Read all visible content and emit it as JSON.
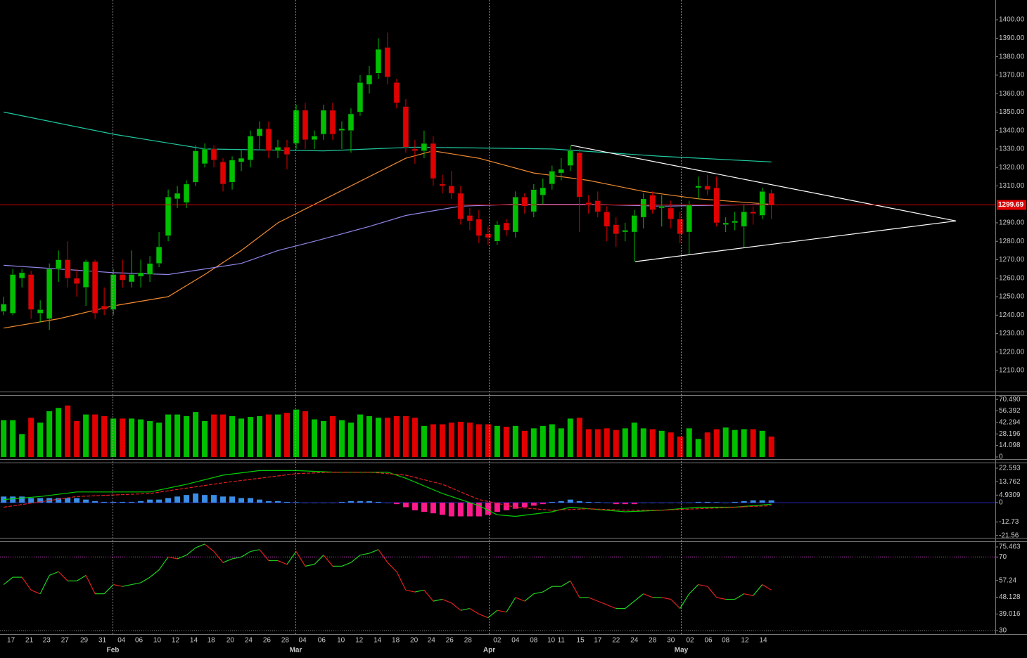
{
  "chart_data": [
    {
      "type": "candlestick",
      "up_color": "#00c000",
      "down_color": "#e00000",
      "xlim": [
        -0.4,
        108.5
      ],
      "ylim": [
        1198.6,
        1410.7
      ],
      "yticks": [
        1210,
        1220,
        1230,
        1240,
        1250,
        1260,
        1270,
        1280,
        1290,
        1310,
        1320,
        1330,
        1340,
        1350,
        1360,
        1370,
        1380,
        1390,
        1400
      ],
      "ytick_labels": [
        "1210.00",
        "1220.00",
        "1230.00",
        "1240.00",
        "1250.00",
        "1260.00",
        "1270.00",
        "1280.00",
        "1290.00",
        "1310.00",
        "1320.00",
        "1330.00",
        "1340.00",
        "1350.00",
        "1360.00",
        "1370.00",
        "1380.00",
        "1390.00",
        "1400.00"
      ],
      "last_price": 1299.69,
      "last_price_color": "#e00000",
      "open": [
        1242,
        1241,
        1260,
        1262,
        1241,
        1238,
        1265,
        1270,
        1260,
        1255,
        1269,
        1245,
        1243,
        1262,
        1258,
        1261,
        1262,
        1268,
        1283,
        1303,
        1301,
        1312,
        1322,
        1330,
        1323,
        1312,
        1323,
        1324,
        1337,
        1341,
        1329,
        1331,
        1333,
        1351,
        1335,
        1338,
        1351,
        1340,
        1340,
        1350,
        1365,
        1371,
        1385,
        1366,
        1353,
        1330,
        1329,
        1333,
        1311,
        1310,
        1306,
        1294,
        1292,
        1284,
        1280,
        1290,
        1285,
        1304,
        1296,
        1305,
        1311,
        1317,
        1321,
        1328,
        1301,
        1302,
        1296,
        1289,
        1285,
        1285,
        1293,
        1305,
        1298,
        1298,
        1292,
        1285,
        1309,
        1310,
        1309,
        1289,
        1290,
        1288,
        1296,
        1294,
        1306
      ],
      "high": [
        1250,
        1265,
        1265,
        1264,
        1248,
        1268,
        1275,
        1280,
        1265,
        1270,
        1270,
        1255,
        1265,
        1270,
        1275,
        1270,
        1272,
        1285,
        1308,
        1310,
        1313,
        1332,
        1333,
        1332,
        1325,
        1326,
        1330,
        1340,
        1345,
        1345,
        1335,
        1335,
        1354,
        1355,
        1340,
        1354,
        1355,
        1345,
        1352,
        1370,
        1375,
        1390,
        1393,
        1368,
        1357,
        1335,
        1340,
        1337,
        1316,
        1318,
        1310,
        1298,
        1297,
        1288,
        1291,
        1292,
        1307,
        1306,
        1311,
        1314,
        1321,
        1325,
        1332,
        1330,
        1305,
        1307,
        1299,
        1293,
        1290,
        1297,
        1306,
        1307,
        1305,
        1302,
        1296,
        1302,
        1315,
        1316,
        1315,
        1293,
        1296,
        1300,
        1299,
        1309,
        1308
      ],
      "low": [
        1240,
        1240,
        1255,
        1238,
        1236,
        1232,
        1258,
        1255,
        1250,
        1245,
        1238,
        1240,
        1240,
        1255,
        1255,
        1255,
        1258,
        1266,
        1280,
        1298,
        1298,
        1310,
        1320,
        1320,
        1307,
        1308,
        1318,
        1320,
        1330,
        1325,
        1325,
        1319,
        1330,
        1330,
        1330,
        1335,
        1335,
        1330,
        1328,
        1348,
        1360,
        1368,
        1365,
        1352,
        1328,
        1322,
        1325,
        1310,
        1306,
        1303,
        1289,
        1286,
        1279,
        1278,
        1278,
        1283,
        1282,
        1295,
        1293,
        1300,
        1308,
        1313,
        1318,
        1285,
        1295,
        1293,
        1280,
        1277,
        1280,
        1269,
        1287,
        1295,
        1288,
        1287,
        1279,
        1273,
        1303,
        1305,
        1288,
        1285,
        1286,
        1277,
        1289,
        1292,
        1292
      ],
      "close": [
        1246,
        1262,
        1263,
        1243,
        1243,
        1265,
        1270,
        1260,
        1257,
        1269,
        1241,
        1243,
        1262,
        1259,
        1262,
        1263,
        1268,
        1277,
        1304,
        1306,
        1311,
        1329,
        1330,
        1324,
        1311,
        1324,
        1325,
        1337,
        1341,
        1329,
        1331,
        1327,
        1351,
        1335,
        1337,
        1351,
        1338,
        1341,
        1349,
        1366,
        1370,
        1384,
        1369,
        1355,
        1331,
        1329,
        1333,
        1314,
        1310,
        1306,
        1292,
        1291,
        1283,
        1282,
        1289,
        1286,
        1304,
        1299,
        1308,
        1309,
        1318,
        1319,
        1329,
        1304,
        1300,
        1296,
        1288,
        1284,
        1286,
        1294,
        1303,
        1297,
        1299,
        1292,
        1284,
        1300,
        1310,
        1308,
        1290,
        1290,
        1291,
        1296,
        1295,
        1307,
        1299.69
      ],
      "moving_averages": [
        {
          "color": "#1fc9a0",
          "x": [
            0,
            12,
            22,
            35,
            45,
            60,
            72,
            84
          ],
          "values": [
            1350,
            1338,
            1330,
            1329,
            1331,
            1330,
            1326,
            1323
          ]
        },
        {
          "color": "#f08a30",
          "x": [
            0,
            6,
            12,
            18,
            22,
            26,
            30,
            34,
            40,
            44,
            47,
            52,
            58,
            64,
            70,
            76,
            84
          ],
          "values": [
            1233,
            1238,
            1245,
            1250,
            1262,
            1275,
            1290,
            1300,
            1315,
            1325,
            1329,
            1325,
            1317,
            1313,
            1307,
            1303,
            1300
          ]
        },
        {
          "color": "#8f86e8",
          "x": [
            0,
            6,
            12,
            18,
            22,
            26,
            30,
            34,
            40,
            44,
            50,
            56,
            64,
            72,
            84
          ],
          "values": [
            1267,
            1265,
            1263,
            1262,
            1265,
            1268,
            1275,
            1280,
            1288,
            1294,
            1299,
            1300,
            1300,
            1299,
            1300
          ]
        }
      ],
      "trendlines": [
        {
          "color": "#ffffff",
          "x": [
            62.1,
            104.2
          ],
          "values": [
            1332,
            1291
          ]
        },
        {
          "color": "#ffffff",
          "x": [
            69.1,
            104.2
          ],
          "values": [
            1269,
            1291
          ]
        }
      ]
    },
    {
      "type": "volume",
      "xlim": [
        -0.4,
        108.5
      ],
      "ylim": [
        -2.6,
        74.9
      ],
      "yticks": [
        {
          "value": 70.49,
          "label": "70.490"
        },
        56.392,
        42.294,
        28.196,
        14.098,
        0
      ],
      "values": [
        45,
        45,
        28,
        48,
        42,
        56,
        60,
        63,
        44,
        52,
        52,
        50,
        47,
        47,
        47,
        46,
        44,
        42,
        52,
        52,
        50,
        55,
        44,
        52,
        52,
        50,
        47,
        49,
        50,
        52,
        52,
        54,
        58,
        56,
        46,
        44,
        50,
        45,
        42,
        52,
        50,
        48,
        48,
        50,
        50,
        48,
        38,
        40,
        40,
        42,
        43,
        42,
        40,
        40,
        38,
        37,
        38,
        32,
        35,
        38,
        40,
        35,
        47,
        48,
        34,
        34,
        35,
        33,
        35,
        42,
        35,
        34,
        32,
        30,
        25,
        35,
        22,
        30,
        34,
        36,
        33,
        34,
        34,
        32,
        25
      ]
    },
    {
      "type": "macd",
      "xlim": [
        -0.4,
        108.5
      ],
      "ylim": [
        -23.05,
        25.8
      ],
      "yticks": [
        22.593,
        13.762,
        4.9309,
        0,
        -12.73,
        -21.56
      ],
      "histogram": {
        "up_color": "#3a8ee6",
        "down_color": "#ff1a8c",
        "values": [
          4,
          4,
          4,
          3,
          3,
          3,
          3,
          3,
          3,
          2,
          1,
          0.5,
          0.5,
          0.5,
          0.5,
          1,
          2,
          2,
          3,
          4,
          5,
          6,
          5,
          5,
          4,
          4,
          3,
          3,
          2,
          1,
          1,
          0.5,
          0.3,
          0,
          0,
          0,
          0,
          0.5,
          1,
          1,
          1,
          0.5,
          0,
          -1,
          -3,
          -5,
          -6,
          -7,
          -8,
          -9,
          -9,
          -9,
          -9,
          -8,
          -6,
          -5,
          -4,
          -3,
          -2,
          -1,
          0.5,
          1,
          2,
          1,
          0.5,
          0.3,
          0,
          -1,
          -1,
          -1,
          0,
          0,
          0,
          0,
          0,
          0,
          0.5,
          0.5,
          0.3,
          0,
          0.5,
          1,
          1.5,
          1.5,
          1.5
        ]
      },
      "series": [
        {
          "color": "#00d000",
          "dashed": false,
          "x": [
            0,
            4,
            8,
            12,
            16,
            20,
            24,
            28,
            32,
            36,
            40,
            42,
            44,
            48,
            52,
            54,
            56,
            60,
            62,
            64,
            68,
            72,
            76,
            80,
            84
          ],
          "values": [
            2,
            4,
            7,
            7,
            7,
            12,
            18,
            21,
            21,
            20,
            20,
            20,
            16,
            6,
            -2,
            -8,
            -9,
            -6,
            -3,
            -4,
            -6,
            -5,
            -3,
            -3,
            -1
          ]
        },
        {
          "color": "#e02020",
          "dashed": true,
          "x": [
            0,
            8,
            16,
            24,
            32,
            36,
            40,
            44,
            48,
            52,
            56,
            60,
            64,
            68,
            72,
            76,
            84
          ],
          "values": [
            -3,
            4,
            6,
            13,
            19,
            20,
            20,
            18,
            12,
            2,
            -3,
            -5,
            -4,
            -5,
            -5,
            -4,
            -2
          ]
        }
      ]
    },
    {
      "type": "rsi",
      "xlim": [
        -0.4,
        108.5
      ],
      "ylim": [
        28.09,
        78.14
      ],
      "yticks": [
        75.463,
        70,
        57.24,
        48.128,
        39.016,
        30
      ],
      "hlines": [
        70,
        30
      ],
      "up_color": "#20d020",
      "down_color": "#e02020",
      "values": [
        55,
        59,
        59,
        52,
        50,
        60,
        62,
        57,
        57,
        60,
        50,
        50,
        55,
        54,
        55,
        56,
        59,
        63,
        70,
        69,
        71,
        75,
        77,
        73,
        67,
        69,
        70,
        73,
        74,
        68,
        68,
        66,
        73,
        65,
        66,
        71,
        65,
        65,
        67,
        71,
        72,
        74,
        67,
        62,
        52,
        51,
        52,
        46,
        47,
        45,
        41,
        42,
        39,
        37,
        41,
        40,
        48,
        46,
        50,
        51,
        54,
        54,
        57,
        48,
        48,
        46,
        44,
        42,
        42,
        46,
        50,
        48,
        48,
        47,
        42,
        50,
        55,
        54,
        48,
        47,
        47,
        50,
        49,
        55,
        52
      ],
      "xticks": [
        {
          "value": 0.8,
          "label": "17"
        },
        {
          "value": 2.8,
          "label": "21"
        },
        {
          "value": 4.7,
          "label": "23"
        },
        {
          "value": 6.7,
          "label": "27"
        },
        {
          "value": 8.8,
          "label": "29"
        },
        {
          "value": 10.8,
          "label": "31"
        },
        {
          "value": 12.9,
          "label": "04"
        },
        {
          "value": 14.8,
          "label": "06"
        },
        {
          "value": 16.8,
          "label": "10"
        },
        {
          "value": 18.8,
          "label": "12"
        },
        {
          "value": 20.8,
          "label": "14"
        },
        {
          "value": 22.7,
          "label": "18"
        },
        {
          "value": 24.8,
          "label": "20"
        },
        {
          "value": 26.8,
          "label": "24"
        },
        {
          "value": 28.8,
          "label": "26"
        },
        {
          "value": 30.8,
          "label": "28"
        },
        {
          "value": 32.7,
          "label": "04"
        },
        {
          "value": 34.8,
          "label": "06"
        },
        {
          "value": 36.9,
          "label": "10"
        },
        {
          "value": 38.9,
          "label": "12"
        },
        {
          "value": 40.9,
          "label": "14"
        },
        {
          "value": 42.9,
          "label": "18"
        },
        {
          "value": 44.9,
          "label": "20"
        },
        {
          "value": 46.8,
          "label": "24"
        },
        {
          "value": 48.8,
          "label": "26"
        },
        {
          "value": 50.8,
          "label": "28"
        },
        {
          "value": 54,
          "label": "02"
        },
        {
          "value": 56,
          "label": "04"
        },
        {
          "value": 58,
          "label": "08"
        },
        {
          "value": 59.9,
          "label": "10"
        },
        {
          "value": 61,
          "label": "11"
        },
        {
          "value": 63.1,
          "label": "15"
        },
        {
          "value": 65,
          "label": "17"
        },
        {
          "value": 67,
          "label": "22"
        },
        {
          "value": 69,
          "label": "24"
        },
        {
          "value": 71,
          "label": "28"
        },
        {
          "value": 73,
          "label": "30"
        },
        {
          "value": 75.1,
          "label": "02"
        },
        {
          "value": 77.1,
          "label": "06"
        },
        {
          "value": 79,
          "label": "08"
        },
        {
          "value": 81.1,
          "label": "12"
        },
        {
          "value": 83.1,
          "label": "14"
        }
      ],
      "month_ticks": [
        {
          "value": 11.9,
          "label": "Feb"
        },
        {
          "value": 31.9,
          "label": "Mar"
        },
        {
          "value": 53.1,
          "label": "Apr"
        },
        {
          "value": 74.1,
          "label": "May"
        }
      ]
    }
  ]
}
